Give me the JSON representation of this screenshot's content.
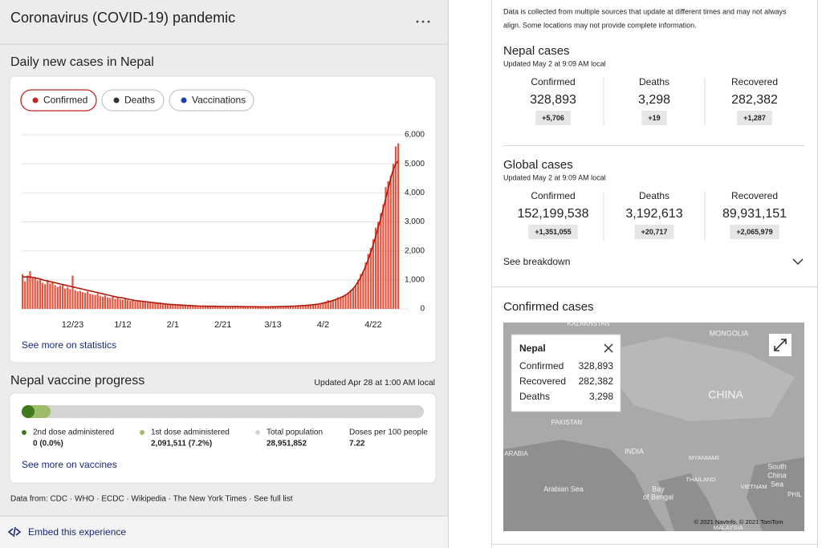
{
  "header": {
    "title": "Coronavirus (COVID-19) pandemic"
  },
  "chart_data": {
    "type": "bar",
    "title": "Daily new cases in Nepal",
    "tabs": [
      {
        "label": "Confirmed",
        "color": "#c4261d"
      },
      {
        "label": "Deaths",
        "color": "#333333"
      },
      {
        "label": "Vaccinations",
        "color": "#1a3fb5"
      }
    ],
    "selected_tab": 0,
    "categories": [
      null,
      null,
      null,
      null,
      null,
      null,
      null,
      null,
      null,
      null,
      null,
      null,
      null,
      null,
      null,
      null,
      null,
      null,
      null,
      null,
      "12/23",
      null,
      null,
      null,
      null,
      null,
      null,
      null,
      null,
      null,
      null,
      null,
      null,
      null,
      null,
      null,
      null,
      null,
      null,
      null,
      "1/12",
      null,
      null,
      null,
      null,
      null,
      null,
      null,
      null,
      null,
      null,
      null,
      null,
      null,
      null,
      null,
      null,
      null,
      null,
      null,
      "2/1",
      null,
      null,
      null,
      null,
      null,
      null,
      null,
      null,
      null,
      null,
      null,
      null,
      null,
      null,
      null,
      null,
      null,
      null,
      null,
      "2/21",
      null,
      null,
      null,
      null,
      null,
      null,
      null,
      null,
      null,
      null,
      null,
      null,
      null,
      null,
      null,
      null,
      null,
      null,
      null,
      "3/13",
      null,
      null,
      null,
      null,
      null,
      null,
      null,
      null,
      null,
      null,
      null,
      null,
      null,
      null,
      null,
      null,
      null,
      null,
      null,
      "4/2",
      null,
      null,
      null,
      null,
      null,
      null,
      null,
      null,
      null,
      null,
      null,
      null,
      null,
      null,
      null,
      null,
      null,
      null,
      null,
      "4/22",
      null,
      null,
      null,
      null,
      null,
      null,
      null,
      null,
      null,
      null
    ],
    "series": [
      {
        "type": "bar",
        "color": "#e4553f",
        "values": [
          1200,
          950,
          1150,
          1300,
          1050,
          1100,
          980,
          1000,
          900,
          850,
          1000,
          880,
          900,
          820,
          760,
          800,
          850,
          700,
          750,
          680,
          1150,
          650,
          600,
          620,
          580,
          550,
          600,
          520,
          500,
          480,
          520,
          450,
          420,
          460,
          400,
          380,
          420,
          350,
          380,
          330,
          320,
          350,
          300,
          280,
          320,
          260,
          290,
          250,
          270,
          230,
          240,
          220,
          200,
          210,
          190,
          180,
          200,
          170,
          160,
          150,
          140,
          150,
          130,
          120,
          140,
          110,
          120,
          100,
          110,
          90,
          100,
          95,
          85,
          90,
          80,
          100,
          90,
          85,
          80,
          90,
          85,
          80,
          90,
          75,
          80,
          70,
          85,
          75,
          80,
          70,
          75,
          65,
          70,
          80,
          75,
          70,
          65,
          70,
          75,
          80,
          75,
          80,
          70,
          85,
          90,
          80,
          95,
          100,
          90,
          110,
          100,
          120,
          130,
          120,
          150,
          140,
          160,
          170,
          180,
          200,
          220,
          250,
          300,
          270,
          320,
          350,
          400,
          380,
          450,
          500,
          550,
          650,
          700,
          800,
          1000,
          1200,
          1300,
          1600,
          1900,
          2100,
          2400,
          2800,
          3000,
          3300,
          3600,
          4200,
          4400,
          4600,
          5000,
          5600,
          5706
        ]
      },
      {
        "type": "line",
        "color": "#b0190b",
        "values": [
          1100,
          1100,
          1100,
          1100,
          1080,
          1070,
          1050,
          1030,
          1000,
          980,
          960,
          940,
          920,
          900,
          880,
          860,
          840,
          820,
          800,
          780,
          760,
          740,
          720,
          700,
          680,
          660,
          640,
          620,
          600,
          580,
          560,
          540,
          520,
          500,
          480,
          460,
          440,
          420,
          400,
          390,
          380,
          360,
          340,
          320,
          300,
          290,
          280,
          270,
          260,
          250,
          240,
          230,
          220,
          210,
          200,
          190,
          180,
          170,
          160,
          155,
          150,
          145,
          140,
          135,
          130,
          125,
          120,
          115,
          110,
          105,
          100,
          98,
          96,
          94,
          92,
          90,
          90,
          88,
          86,
          85,
          85,
          84,
          83,
          82,
          81,
          80,
          79,
          78,
          77,
          76,
          75,
          75,
          74,
          74,
          73,
          73,
          73,
          72,
          72,
          72,
          75,
          76,
          78,
          80,
          82,
          85,
          88,
          92,
          96,
          100,
          105,
          110,
          115,
          120,
          128,
          136,
          145,
          155,
          165,
          180,
          200,
          220,
          240,
          265,
          290,
          320,
          350,
          390,
          430,
          480,
          540,
          610,
          700,
          810,
          940,
          1090,
          1270,
          1470,
          1700,
          1950,
          2200,
          2500,
          2800,
          3100,
          3450,
          3800,
          4150,
          4500,
          4800,
          5000,
          5100
        ]
      }
    ],
    "ylim": [
      0,
      6000
    ],
    "yticks": [
      0,
      {
        "value": 1000,
        "label": "1,000"
      },
      {
        "value": 2000,
        "label": "2,000"
      },
      {
        "value": 3000,
        "label": "3,000"
      },
      {
        "value": 4000,
        "label": "4,000"
      },
      {
        "value": 5000,
        "label": "5,000"
      },
      {
        "value": 6000,
        "label": "6,000"
      }
    ],
    "grid": true,
    "link": "See more on statistics"
  },
  "vaccine": {
    "title": "Nepal vaccine progress",
    "updated": "Updated Apr 28 at 1:00 AM local",
    "progress": {
      "second_dose": 0,
      "first_dose": 7.2
    },
    "items": [
      {
        "label": "2nd dose administered",
        "value": "0 (0.0%)",
        "color": "#3f7a1c"
      },
      {
        "label": "1st dose administered",
        "value": "2,091,511 (7.2%)",
        "color": "#9dbd6b"
      },
      {
        "label": "Total population",
        "value": "28,951,852",
        "color": "#d4d4d4"
      },
      {
        "label": "Doses per 100 people",
        "value": "7.22"
      }
    ],
    "link": "See more on vaccines"
  },
  "sources": "Data from: CDC · WHO · ECDC · Wikipedia · The New York Times · See full list",
  "embed": "Embed this experience",
  "disclaimer": [
    "Data is collected from multiple sources that update at different times and may not always",
    "align. Some locations may not provide complete information."
  ],
  "nepal_cases": {
    "title": "Nepal cases",
    "updated": "Updated May 2 at 9:09 AM local",
    "columns": [
      {
        "label": "Confirmed",
        "value": "328,893",
        "change": "+5,706"
      },
      {
        "label": "Deaths",
        "value": "3,298",
        "change": "+19"
      },
      {
        "label": "Recovered",
        "value": "282,382",
        "change": "+1,287"
      }
    ]
  },
  "global_cases": {
    "title": "Global cases",
    "updated": "Updated May 2 at 9:09 AM local",
    "columns": [
      {
        "label": "Confirmed",
        "value": "152,199,538",
        "change": "+1,351,055"
      },
      {
        "label": "Deaths",
        "value": "3,192,613",
        "change": "+20,717"
      },
      {
        "label": "Recovered",
        "value": "89,931,151",
        "change": "+2,065,979"
      }
    ]
  },
  "breakdown": "See breakdown",
  "map": {
    "title": "Confirmed cases",
    "labels": [
      "KAZAKHSTAN",
      "MONGOLIA",
      "CHINA",
      "PAKISTAN",
      "INDIA",
      "ARABIA",
      "MYANMAR",
      "THAILAND",
      "VIETNAM",
      "South",
      "China",
      "Sea",
      "Arabian Sea",
      "Bay",
      "of Bengal",
      "PHIL",
      "MALAYSIA",
      "© 2021 NavInfo, © 2021 TomTom"
    ],
    "popup": {
      "title": "Nepal",
      "rows": [
        [
          "Confirmed",
          "328,893"
        ],
        [
          "Recovered",
          "282,382"
        ],
        [
          "Deaths",
          "3,298"
        ]
      ]
    }
  }
}
